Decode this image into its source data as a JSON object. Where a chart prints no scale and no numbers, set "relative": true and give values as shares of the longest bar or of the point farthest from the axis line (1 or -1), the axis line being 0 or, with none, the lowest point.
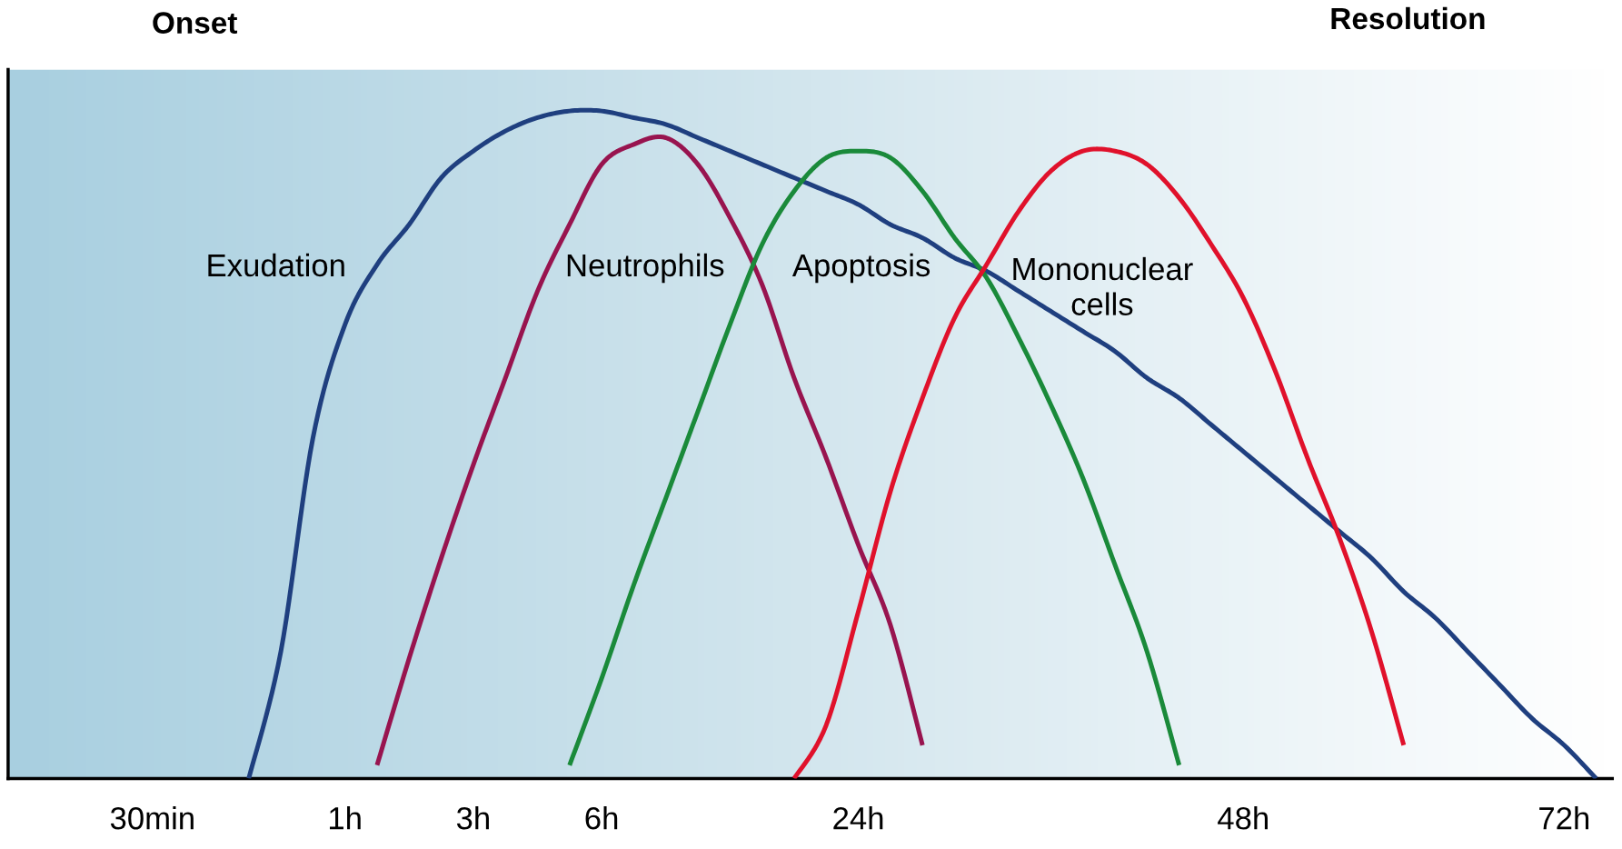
{
  "chart_data": {
    "type": "line",
    "relative": true,
    "annotations": [
      "Onset",
      "Resolution",
      "Exudation",
      "Neutrophils",
      "Apoptosis",
      "Mononuclear\ncells"
    ],
    "categories": [
      null,
      null,
      null,
      null,
      "30min",
      null,
      null,
      null,
      null,
      null,
      "1h",
      null,
      null,
      null,
      "3h",
      null,
      null,
      null,
      "6h",
      null,
      null,
      null,
      null,
      null,
      null,
      null,
      "24h",
      null,
      null,
      null,
      null,
      null,
      null,
      null,
      null,
      null,
      null,
      null,
      "48h",
      null,
      null,
      null,
      null,
      null,
      null,
      null,
      null,
      null,
      "72h",
      null
    ],
    "tick_labels": "x",
    "grid": false,
    "marker": "none",
    "line_style": "solid",
    "series": [
      {
        "color": "#1f3f7f",
        "values": [
          null,
          null,
          null,
          null,
          null,
          null,
          null,
          0.0,
          0.19,
          0.51,
          0.68,
          0.77,
          0.83,
          0.9,
          0.94,
          0.97,
          0.99,
          1.0,
          1.0,
          0.99,
          0.98,
          0.96,
          0.94,
          0.92,
          0.9,
          0.88,
          0.86,
          0.83,
          0.81,
          0.78,
          0.76,
          0.73,
          0.7,
          0.67,
          0.64,
          0.6,
          0.57,
          0.53,
          0.49,
          0.45,
          0.41,
          0.37,
          0.33,
          0.28,
          0.24,
          0.19,
          0.14,
          0.09,
          0.05,
          0.0
        ]
      },
      {
        "color": "#98144f",
        "values": [
          null,
          null,
          null,
          null,
          null,
          null,
          null,
          null,
          null,
          null,
          null,
          0.02,
          0.18,
          0.33,
          0.47,
          0.6,
          0.73,
          0.83,
          0.92,
          0.95,
          0.96,
          0.92,
          0.84,
          0.74,
          0.6,
          0.48,
          0.35,
          0.23,
          0.05,
          null,
          null,
          null,
          null,
          null,
          null,
          null,
          null,
          null,
          null,
          null,
          null,
          null,
          null,
          null,
          null,
          null,
          null,
          null,
          null,
          null
        ]
      },
      {
        "color": "#1a8a3a",
        "values": [
          null,
          null,
          null,
          null,
          null,
          null,
          null,
          null,
          null,
          null,
          null,
          null,
          null,
          null,
          null,
          null,
          null,
          0.02,
          0.15,
          0.29,
          0.42,
          0.55,
          0.68,
          0.8,
          0.88,
          0.93,
          0.94,
          0.93,
          0.88,
          0.81,
          0.75,
          0.66,
          0.56,
          0.45,
          0.32,
          0.19,
          0.02,
          null,
          null,
          null,
          null,
          null,
          null,
          null,
          null,
          null,
          null,
          null,
          null,
          null
        ]
      },
      {
        "color": "#e0112b",
        "values": [
          null,
          null,
          null,
          null,
          null,
          null,
          null,
          null,
          null,
          null,
          null,
          null,
          null,
          null,
          null,
          null,
          null,
          null,
          null,
          null,
          null,
          null,
          null,
          null,
          0.0,
          0.08,
          0.25,
          0.43,
          0.57,
          0.69,
          0.77,
          0.85,
          0.91,
          0.94,
          0.94,
          0.92,
          0.87,
          0.8,
          0.72,
          0.61,
          0.48,
          0.36,
          0.22,
          0.05,
          null,
          null,
          null,
          null,
          null,
          null
        ]
      }
    ]
  }
}
